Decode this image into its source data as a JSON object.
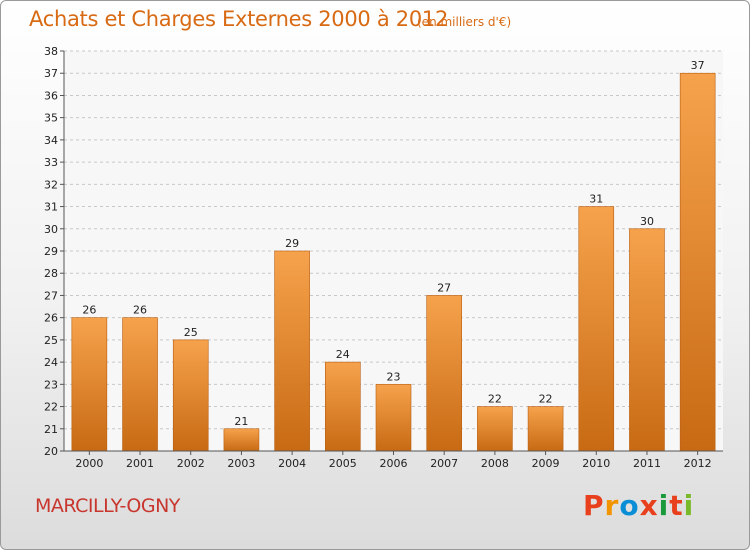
{
  "header": {
    "title": "Achats et Charges Externes 2000 à 2012",
    "subtitle": "(en milliers d'€)"
  },
  "footer": {
    "commune": "MARCILLY-OGNY",
    "brand": "Proxiti",
    "brand_colors": [
      "#e8401c",
      "#f29400",
      "#0a8fd6",
      "#e8401c",
      "#1a9a3a",
      "#e8401c",
      "#7ab929"
    ]
  },
  "colors": {
    "title": "#d86a14",
    "commune": "#c8362e",
    "bar_light": "#f6a24c",
    "bar_dark": "#c86a14"
  },
  "chart_data": {
    "type": "bar",
    "title": "Achats et Charges Externes 2000 à 2012",
    "subtitle": "(en milliers d'€)",
    "categories": [
      "2000",
      "2001",
      "2002",
      "2003",
      "2004",
      "2005",
      "2006",
      "2007",
      "2008",
      "2009",
      "2010",
      "2011",
      "2012"
    ],
    "values": [
      26,
      26,
      25,
      21,
      29,
      24,
      23,
      27,
      22,
      22,
      31,
      30,
      37
    ],
    "ylim": [
      20,
      38
    ],
    "yticks": [
      20,
      21,
      22,
      23,
      24,
      25,
      26,
      27,
      28,
      29,
      30,
      31,
      32,
      33,
      34,
      35,
      36,
      37,
      38
    ],
    "grid": true,
    "data_labels": true
  }
}
